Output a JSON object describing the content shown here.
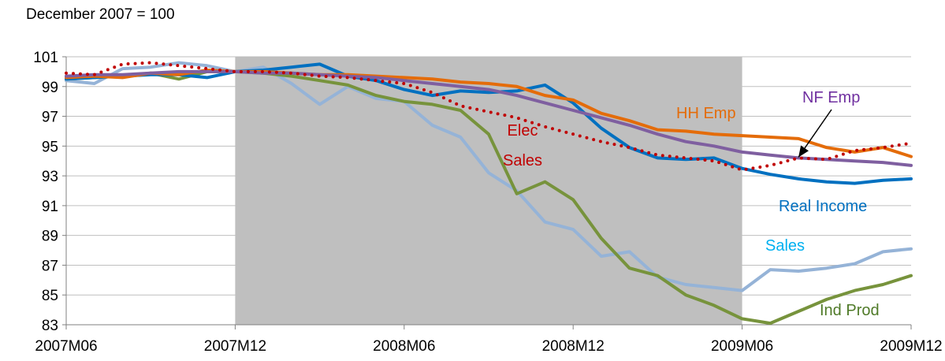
{
  "chart_data": {
    "type": "line",
    "subtitle": "December 2007 = 100",
    "x_tick_labels": [
      "2007M06",
      "2007M12",
      "2008M06",
      "2008M12",
      "2009M06",
      "2009M12"
    ],
    "x_start": "2007M06",
    "x_end": "2009M12",
    "ylim": [
      83,
      101
    ],
    "y_ticks": [
      83,
      85,
      87,
      89,
      91,
      93,
      95,
      97,
      99,
      101
    ],
    "grid": "horizontal",
    "recession_shading": {
      "start": "2007M12",
      "end": "2009M06",
      "color": "#bfbfbf"
    },
    "series": [
      {
        "name": "Sales",
        "label_lines": [
          "Sales"
        ],
        "color": "#95b3d7",
        "label_color": "#00b0f0",
        "style": "solid",
        "values": [
          99.4,
          99.2,
          100.2,
          100.3,
          100.6,
          100.4,
          100.0,
          100.3,
          99.2,
          97.8,
          99.0,
          98.2,
          98.0,
          96.4,
          95.6,
          93.2,
          92.0,
          89.9,
          89.4,
          87.6,
          87.9,
          86.2,
          85.7,
          85.5,
          85.3,
          86.7,
          86.6,
          86.8,
          87.1,
          87.9,
          88.1
        ]
      },
      {
        "name": "Ind Prod",
        "label_lines": [
          "Ind Prod"
        ],
        "color": "#77933c",
        "label_color": "#4f7a28",
        "style": "solid",
        "values": [
          99.5,
          99.6,
          99.7,
          99.9,
          99.5,
          100.0,
          100.0,
          99.9,
          99.7,
          99.4,
          99.1,
          98.4,
          98.0,
          97.8,
          97.4,
          95.8,
          91.8,
          92.6,
          91.4,
          88.8,
          86.8,
          86.3,
          85.0,
          84.3,
          83.4,
          83.1,
          83.9,
          84.7,
          85.3,
          85.7,
          86.3
        ]
      },
      {
        "name": "Real Income",
        "label_lines": [
          "Real Income"
        ],
        "color": "#0070c0",
        "label_color": "#0070c0",
        "style": "solid",
        "values": [
          99.5,
          99.6,
          99.7,
          99.8,
          99.8,
          99.6,
          100.0,
          100.1,
          100.3,
          100.5,
          99.7,
          99.4,
          98.8,
          98.4,
          98.7,
          98.6,
          98.7,
          99.1,
          97.9,
          96.2,
          94.9,
          94.2,
          94.1,
          94.2,
          93.5,
          93.1,
          92.8,
          92.6,
          92.5,
          92.7,
          92.8
        ]
      },
      {
        "name": "HH Emp",
        "label_lines": [
          "HH Emp"
        ],
        "color": "#e46c0a",
        "label_color": "#e46c0a",
        "style": "solid",
        "values": [
          99.6,
          99.7,
          99.6,
          99.9,
          99.8,
          100.1,
          100.0,
          100.0,
          99.9,
          99.8,
          99.8,
          99.7,
          99.6,
          99.5,
          99.3,
          99.2,
          99.0,
          98.4,
          98.1,
          97.2,
          96.7,
          96.1,
          96.0,
          95.8,
          95.7,
          95.6,
          95.5,
          94.9,
          94.6,
          94.9,
          94.3
        ]
      },
      {
        "name": "NF Emp",
        "label_lines": [
          "NF Emp"
        ],
        "color": "#7f5fa0",
        "label_color": "#7030a0",
        "style": "solid",
        "values": [
          99.7,
          99.8,
          99.8,
          99.9,
          100.0,
          100.0,
          100.0,
          99.9,
          99.9,
          99.8,
          99.7,
          99.6,
          99.4,
          99.2,
          99.0,
          98.8,
          98.4,
          97.9,
          97.4,
          96.9,
          96.4,
          95.8,
          95.3,
          95.0,
          94.6,
          94.4,
          94.2,
          94.1,
          94.0,
          93.9,
          93.7
        ]
      },
      {
        "name": "Elec Sales",
        "label_lines": [
          "Elec",
          "Sales"
        ],
        "color": "#c00000",
        "label_color": "#c00000",
        "style": "dotted",
        "values": [
          99.9,
          99.8,
          100.5,
          100.6,
          100.4,
          100.2,
          100.0,
          100.0,
          99.9,
          99.7,
          99.6,
          99.4,
          99.2,
          98.6,
          97.7,
          97.3,
          96.9,
          96.3,
          95.8,
          95.3,
          94.9,
          94.4,
          94.2,
          94.0,
          93.4,
          93.7,
          94.2,
          94.1,
          94.7,
          94.9,
          95.2
        ]
      }
    ],
    "annotations": [
      {
        "type": "arrow",
        "from_label": "NF Emp",
        "to_series": "NF Emp",
        "to_index": 26
      }
    ]
  }
}
